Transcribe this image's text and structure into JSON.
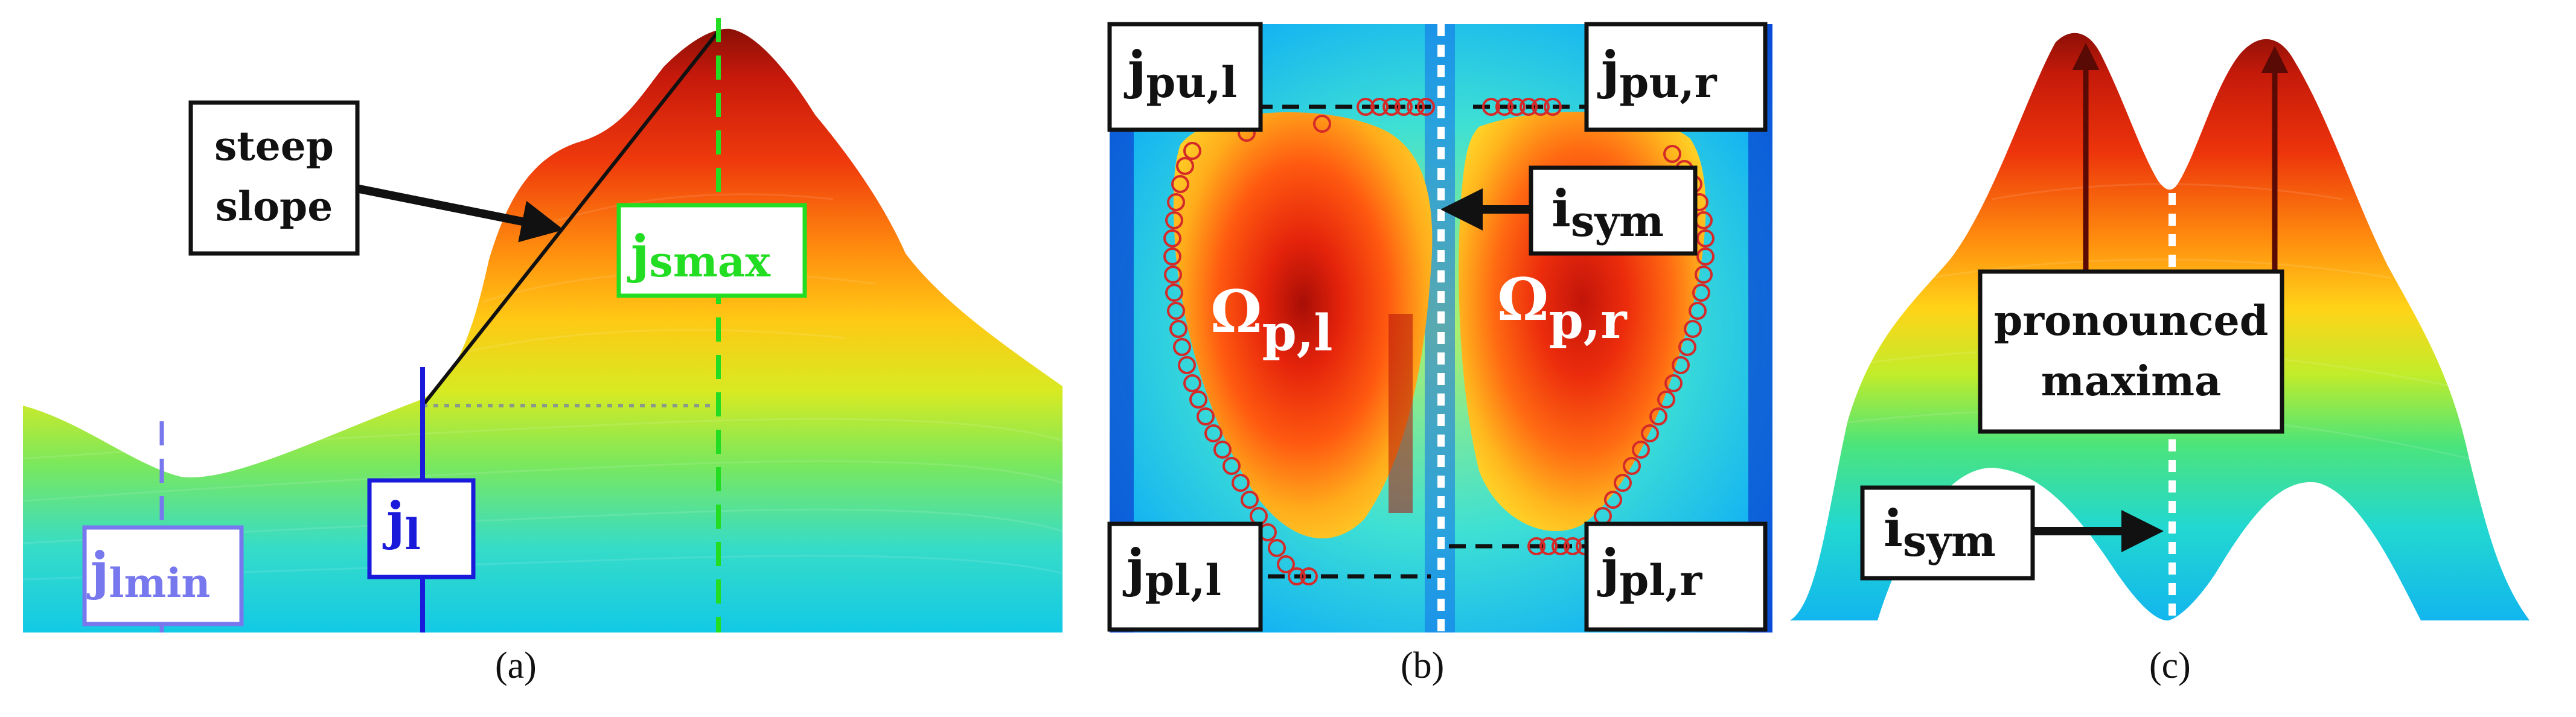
{
  "panels": {
    "a": {
      "caption": "(a)",
      "labels": {
        "steep_slope_line1": "steep",
        "steep_slope_line2": "slope",
        "jsmax": "j",
        "jsmax_sub": "smax",
        "jl": "j",
        "jl_sub": "l",
        "jlmin": "j",
        "jlmin_sub": "lmin"
      }
    },
    "b": {
      "caption": "(b)",
      "labels": {
        "jpu_l": "j",
        "jpu_l_sub": "pu,l",
        "jpu_r": "j",
        "jpu_r_sub": "pu,r",
        "isym": "i",
        "isym_sub": "sym",
        "omega_l": "Ω",
        "omega_l_sub": "p,l",
        "omega_r": "Ω",
        "omega_r_sub": "p,r",
        "jpl_l": "j",
        "jpl_l_sub": "pl,l",
        "jpl_r": "j",
        "jpl_r_sub": "pl,r"
      }
    },
    "c": {
      "caption": "(c)",
      "labels": {
        "pronounced_line1": "pronounced",
        "pronounced_line2": "maxima",
        "isym": "i",
        "isym_sub": "sym"
      }
    }
  },
  "colors": {
    "box_border": "#111111",
    "jsmax": "#22dd22",
    "jl": "#1a1adb",
    "jlmin": "#7878ee",
    "circles": "#d42a2a",
    "symmetry": "#ffffff"
  }
}
